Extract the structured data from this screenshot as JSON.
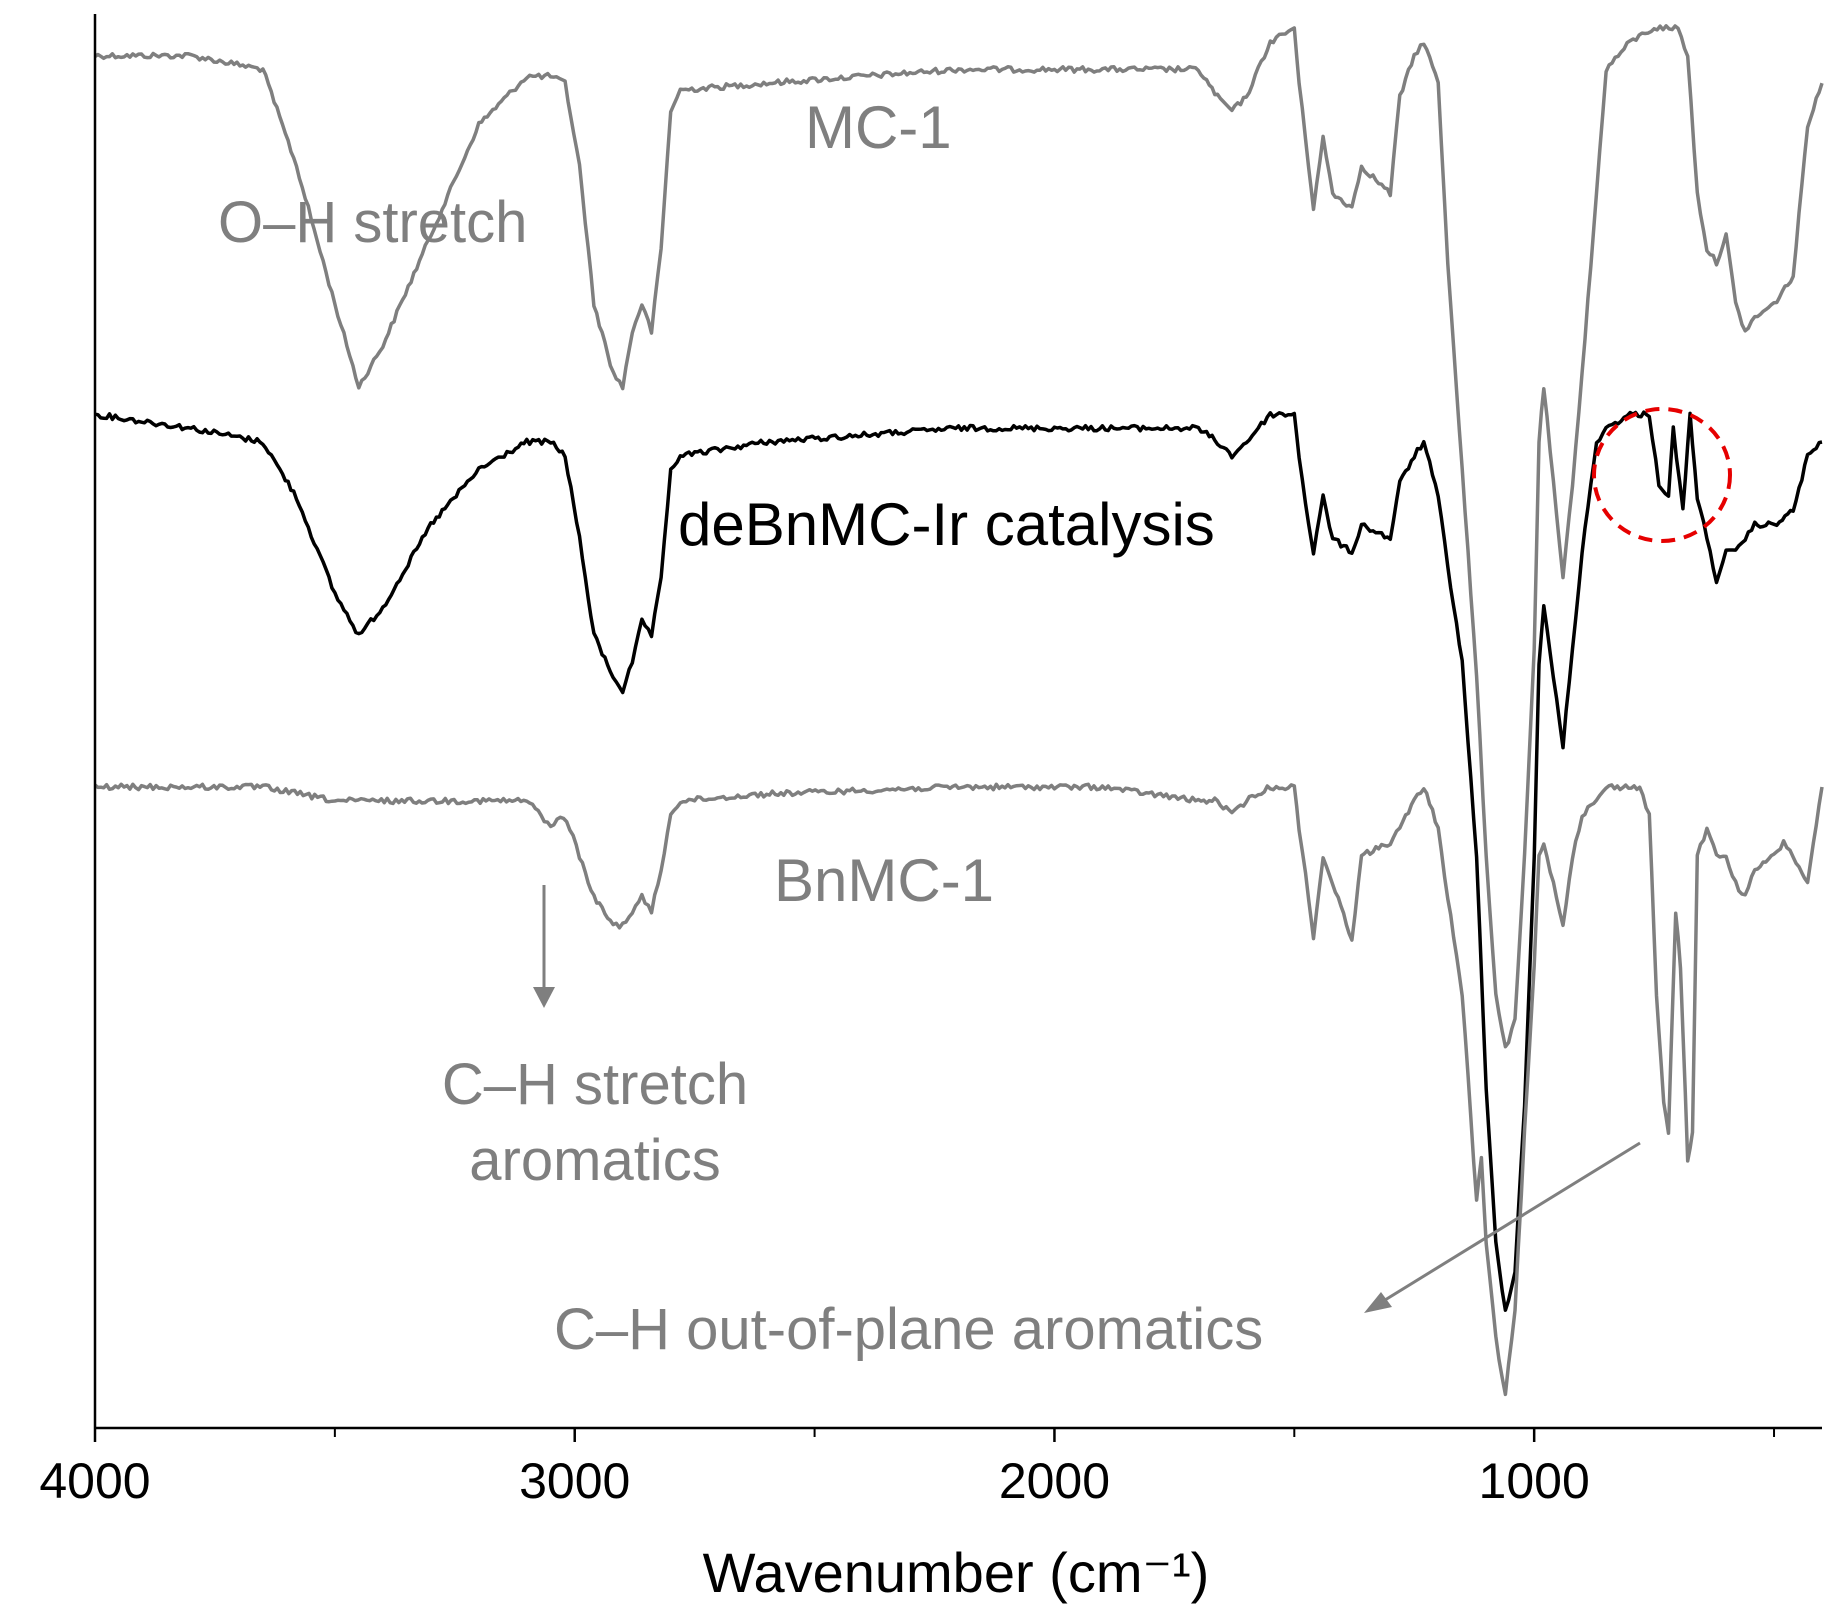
{
  "chart_data": {
    "type": "line",
    "title": "",
    "xlabel": "Wavenumber (cm⁻¹)",
    "ylabel": "",
    "xlim": [
      4000,
      400
    ],
    "x_reversed": true,
    "y_ticks_shown": false,
    "grid": false,
    "xticks": [
      {
        "value": 4000,
        "label": "4000"
      },
      {
        "value": 3000,
        "label": "3000"
      },
      {
        "value": 2000,
        "label": "2000"
      },
      {
        "value": 1000,
        "label": "1000"
      }
    ],
    "minor_xticks": [
      3500,
      2500,
      1500,
      500
    ],
    "series": [
      {
        "name": "MC-1",
        "color": "#7f7f7f",
        "points": [
          [
            4000,
            0.02
          ],
          [
            3800,
            0.02
          ],
          [
            3650,
            0.03
          ],
          [
            3580,
            0.1
          ],
          [
            3500,
            0.2
          ],
          [
            3450,
            0.26
          ],
          [
            3400,
            0.23
          ],
          [
            3300,
            0.15
          ],
          [
            3200,
            0.07
          ],
          [
            3100,
            0.035
          ],
          [
            3050,
            0.035
          ],
          [
            3020,
            0.04
          ],
          [
            2990,
            0.1
          ],
          [
            2960,
            0.2
          ],
          [
            2920,
            0.25
          ],
          [
            2900,
            0.26
          ],
          [
            2880,
            0.22
          ],
          [
            2860,
            0.2
          ],
          [
            2840,
            0.22
          ],
          [
            2820,
            0.16
          ],
          [
            2800,
            0.06
          ],
          [
            2780,
            0.045
          ],
          [
            2600,
            0.04
          ],
          [
            2200,
            0.03
          ],
          [
            2000,
            0.03
          ],
          [
            1900,
            0.03
          ],
          [
            1700,
            0.03
          ],
          [
            1660,
            0.05
          ],
          [
            1630,
            0.06
          ],
          [
            1600,
            0.05
          ],
          [
            1550,
            0.01
          ],
          [
            1500,
            0.0
          ],
          [
            1490,
            0.04
          ],
          [
            1470,
            0.1
          ],
          [
            1460,
            0.13
          ],
          [
            1440,
            0.08
          ],
          [
            1420,
            0.12
          ],
          [
            1380,
            0.13
          ],
          [
            1360,
            0.1
          ],
          [
            1300,
            0.12
          ],
          [
            1280,
            0.05
          ],
          [
            1250,
            0.02
          ],
          [
            1230,
            0.01
          ],
          [
            1200,
            0.04
          ],
          [
            1180,
            0.17
          ],
          [
            1150,
            0.32
          ],
          [
            1120,
            0.47
          ],
          [
            1100,
            0.6
          ],
          [
            1080,
            0.7
          ],
          [
            1060,
            0.74
          ],
          [
            1040,
            0.72
          ],
          [
            1020,
            0.6
          ],
          [
            1000,
            0.45
          ],
          [
            990,
            0.3
          ],
          [
            980,
            0.26
          ],
          [
            960,
            0.33
          ],
          [
            940,
            0.4
          ],
          [
            920,
            0.33
          ],
          [
            900,
            0.25
          ],
          [
            870,
            0.12
          ],
          [
            850,
            0.03
          ],
          [
            800,
            0.01
          ],
          [
            750,
            0.0
          ],
          [
            700,
            0.0
          ],
          [
            680,
            0.02
          ],
          [
            660,
            0.12
          ],
          [
            640,
            0.16
          ],
          [
            620,
            0.17
          ],
          [
            600,
            0.15
          ],
          [
            580,
            0.2
          ],
          [
            560,
            0.22
          ],
          [
            540,
            0.21
          ],
          [
            500,
            0.2
          ],
          [
            460,
            0.18
          ],
          [
            430,
            0.07
          ],
          [
            400,
            0.04
          ]
        ]
      },
      {
        "name": "deBnMC-Ir catalysis",
        "color": "#000000",
        "points": [
          [
            4000,
            0.28
          ],
          [
            3800,
            0.29
          ],
          [
            3650,
            0.3
          ],
          [
            3580,
            0.34
          ],
          [
            3500,
            0.41
          ],
          [
            3450,
            0.44
          ],
          [
            3400,
            0.42
          ],
          [
            3300,
            0.36
          ],
          [
            3200,
            0.32
          ],
          [
            3100,
            0.3
          ],
          [
            3050,
            0.3
          ],
          [
            3020,
            0.31
          ],
          [
            2990,
            0.37
          ],
          [
            2960,
            0.44
          ],
          [
            2920,
            0.47
          ],
          [
            2900,
            0.48
          ],
          [
            2880,
            0.46
          ],
          [
            2860,
            0.43
          ],
          [
            2840,
            0.44
          ],
          [
            2820,
            0.4
          ],
          [
            2800,
            0.32
          ],
          [
            2780,
            0.31
          ],
          [
            2600,
            0.3
          ],
          [
            2200,
            0.29
          ],
          [
            2000,
            0.29
          ],
          [
            1900,
            0.29
          ],
          [
            1700,
            0.29
          ],
          [
            1660,
            0.3
          ],
          [
            1630,
            0.31
          ],
          [
            1600,
            0.3
          ],
          [
            1550,
            0.28
          ],
          [
            1500,
            0.28
          ],
          [
            1490,
            0.31
          ],
          [
            1470,
            0.36
          ],
          [
            1460,
            0.38
          ],
          [
            1440,
            0.34
          ],
          [
            1420,
            0.37
          ],
          [
            1380,
            0.38
          ],
          [
            1360,
            0.36
          ],
          [
            1300,
            0.37
          ],
          [
            1280,
            0.33
          ],
          [
            1250,
            0.31
          ],
          [
            1230,
            0.3
          ],
          [
            1200,
            0.34
          ],
          [
            1180,
            0.39
          ],
          [
            1150,
            0.46
          ],
          [
            1120,
            0.6
          ],
          [
            1100,
            0.77
          ],
          [
            1080,
            0.88
          ],
          [
            1060,
            0.93
          ],
          [
            1040,
            0.9
          ],
          [
            1020,
            0.78
          ],
          [
            1000,
            0.6
          ],
          [
            990,
            0.46
          ],
          [
            980,
            0.42
          ],
          [
            960,
            0.47
          ],
          [
            940,
            0.52
          ],
          [
            920,
            0.45
          ],
          [
            900,
            0.38
          ],
          [
            870,
            0.3
          ],
          [
            850,
            0.29
          ],
          [
            800,
            0.28
          ],
          [
            760,
            0.28
          ],
          [
            740,
            0.33
          ],
          [
            720,
            0.34
          ],
          [
            710,
            0.29
          ],
          [
            690,
            0.35
          ],
          [
            675,
            0.28
          ],
          [
            660,
            0.34
          ],
          [
            640,
            0.37
          ],
          [
            620,
            0.4
          ],
          [
            600,
            0.38
          ],
          [
            580,
            0.38
          ],
          [
            560,
            0.37
          ],
          [
            540,
            0.36
          ],
          [
            500,
            0.36
          ],
          [
            460,
            0.35
          ],
          [
            430,
            0.31
          ],
          [
            400,
            0.3
          ]
        ]
      },
      {
        "name": "BnMC-1",
        "color": "#7f7f7f",
        "points": [
          [
            4000,
            0.55
          ],
          [
            3800,
            0.55
          ],
          [
            3650,
            0.55
          ],
          [
            3500,
            0.56
          ],
          [
            3300,
            0.56
          ],
          [
            3100,
            0.56
          ],
          [
            3070,
            0.57
          ],
          [
            3050,
            0.58
          ],
          [
            3030,
            0.57
          ],
          [
            3010,
            0.58
          ],
          [
            2990,
            0.6
          ],
          [
            2960,
            0.63
          ],
          [
            2920,
            0.65
          ],
          [
            2900,
            0.65
          ],
          [
            2880,
            0.64
          ],
          [
            2860,
            0.63
          ],
          [
            2840,
            0.64
          ],
          [
            2820,
            0.61
          ],
          [
            2800,
            0.57
          ],
          [
            2780,
            0.56
          ],
          [
            2600,
            0.555
          ],
          [
            2200,
            0.55
          ],
          [
            2000,
            0.55
          ],
          [
            1900,
            0.55
          ],
          [
            1700,
            0.56
          ],
          [
            1660,
            0.56
          ],
          [
            1630,
            0.57
          ],
          [
            1600,
            0.56
          ],
          [
            1550,
            0.55
          ],
          [
            1500,
            0.55
          ],
          [
            1490,
            0.58
          ],
          [
            1470,
            0.63
          ],
          [
            1460,
            0.66
          ],
          [
            1440,
            0.6
          ],
          [
            1420,
            0.62
          ],
          [
            1380,
            0.66
          ],
          [
            1360,
            0.6
          ],
          [
            1300,
            0.59
          ],
          [
            1280,
            0.58
          ],
          [
            1250,
            0.56
          ],
          [
            1230,
            0.55
          ],
          [
            1200,
            0.58
          ],
          [
            1180,
            0.63
          ],
          [
            1150,
            0.7
          ],
          [
            1120,
            0.85
          ],
          [
            1110,
            0.82
          ],
          [
            1100,
            0.88
          ],
          [
            1080,
            0.95
          ],
          [
            1060,
            0.99
          ],
          [
            1040,
            0.93
          ],
          [
            1020,
            0.8
          ],
          [
            1000,
            0.68
          ],
          [
            990,
            0.6
          ],
          [
            980,
            0.59
          ],
          [
            960,
            0.62
          ],
          [
            940,
            0.65
          ],
          [
            920,
            0.6
          ],
          [
            900,
            0.57
          ],
          [
            870,
            0.56
          ],
          [
            850,
            0.55
          ],
          [
            780,
            0.55
          ],
          [
            760,
            0.57
          ],
          [
            745,
            0.7
          ],
          [
            730,
            0.78
          ],
          [
            720,
            0.8
          ],
          [
            705,
            0.64
          ],
          [
            695,
            0.68
          ],
          [
            680,
            0.82
          ],
          [
            670,
            0.8
          ],
          [
            660,
            0.6
          ],
          [
            640,
            0.58
          ],
          [
            620,
            0.6
          ],
          [
            600,
            0.6
          ],
          [
            580,
            0.62
          ],
          [
            560,
            0.63
          ],
          [
            540,
            0.61
          ],
          [
            500,
            0.6
          ],
          [
            480,
            0.59
          ],
          [
            460,
            0.6
          ],
          [
            430,
            0.62
          ],
          [
            400,
            0.55
          ]
        ]
      }
    ],
    "annotations": [
      {
        "text": "O–H stretch",
        "color": "#7f7f7f"
      },
      {
        "text": "C–H stretch",
        "color": "#7f7f7f"
      },
      {
        "text": "aromatics",
        "color": "#7f7f7f"
      },
      {
        "text": "C–H out-of-plane aromatics",
        "color": "#7f7f7f"
      }
    ],
    "highlight_color": "#e60000"
  }
}
